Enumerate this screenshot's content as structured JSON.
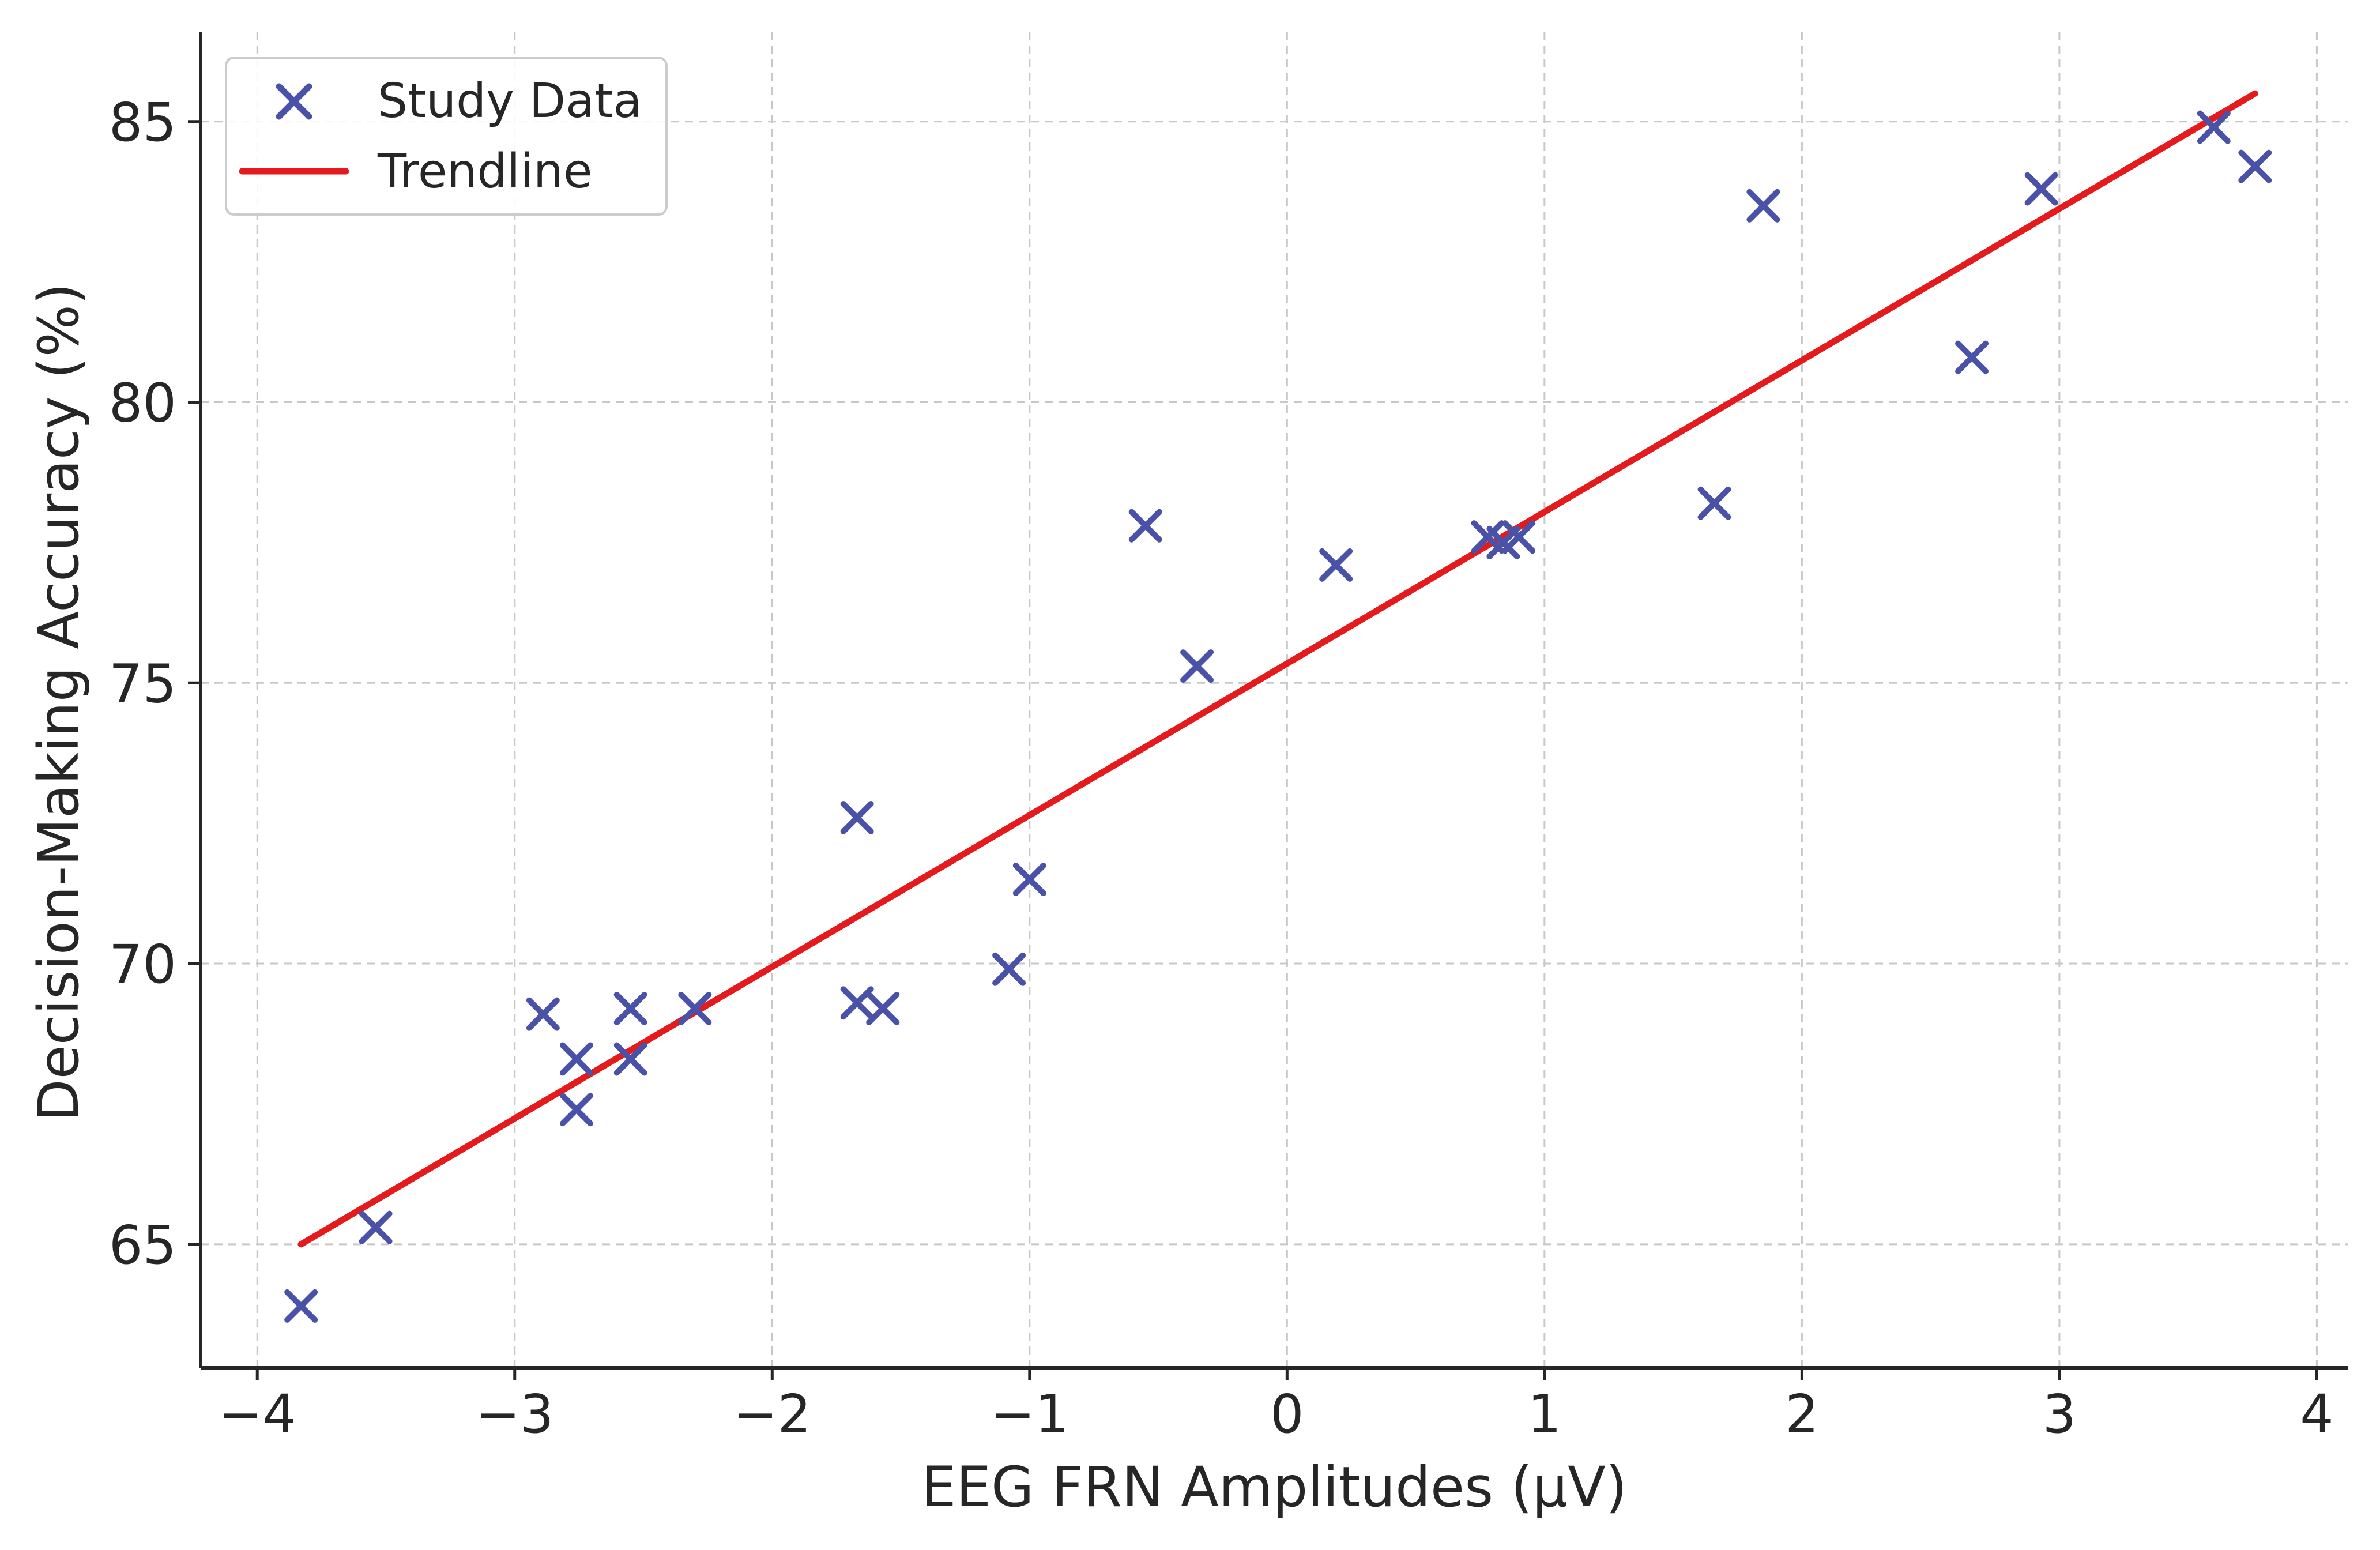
{
  "chart_data": {
    "type": "scatter",
    "title": "",
    "xlabel": "EEG FRN Amplitudes (μV)",
    "ylabel": "Decision-Making Accuracy (%)",
    "xlim": [
      -4.22,
      4.12
    ],
    "ylim": [
      62.8,
      86.6
    ],
    "xticks": [
      -4,
      -3,
      -2,
      -1,
      0,
      1,
      2,
      3,
      4
    ],
    "xtick_labels": [
      "−4",
      "−3",
      "−2",
      "−1",
      "0",
      "1",
      "2",
      "3",
      "4"
    ],
    "yticks": [
      65,
      70,
      75,
      80,
      85
    ],
    "ytick_labels": [
      "65",
      "70",
      "75",
      "80",
      "85"
    ],
    "grid": true,
    "legend_position": "top-left",
    "series": [
      {
        "name": "Study Data",
        "kind": "scatter",
        "marker": "x",
        "color": "#4a52a8",
        "points": [
          [
            -3.83,
            63.9
          ],
          [
            -3.54,
            65.3
          ],
          [
            -2.89,
            69.1
          ],
          [
            -2.76,
            68.3
          ],
          [
            -2.76,
            67.4
          ],
          [
            -2.55,
            69.2
          ],
          [
            -2.55,
            68.3
          ],
          [
            -2.3,
            69.2
          ],
          [
            -1.67,
            72.6
          ],
          [
            -1.67,
            69.3
          ],
          [
            -1.57,
            69.2
          ],
          [
            -1.08,
            69.9
          ],
          [
            -1.0,
            71.5
          ],
          [
            -0.55,
            77.8
          ],
          [
            -0.35,
            75.3
          ],
          [
            0.19,
            77.1
          ],
          [
            0.78,
            77.6
          ],
          [
            0.84,
            77.5
          ],
          [
            0.9,
            77.6
          ],
          [
            1.66,
            78.2
          ],
          [
            1.85,
            83.5
          ],
          [
            2.66,
            80.8
          ],
          [
            2.93,
            83.8
          ],
          [
            3.6,
            84.9
          ],
          [
            3.76,
            84.2
          ]
        ]
      },
      {
        "name": "Trendline",
        "kind": "line",
        "color": "#e41a1c",
        "points": [
          [
            -3.83,
            65.0
          ],
          [
            3.76,
            85.5
          ]
        ]
      }
    ]
  }
}
